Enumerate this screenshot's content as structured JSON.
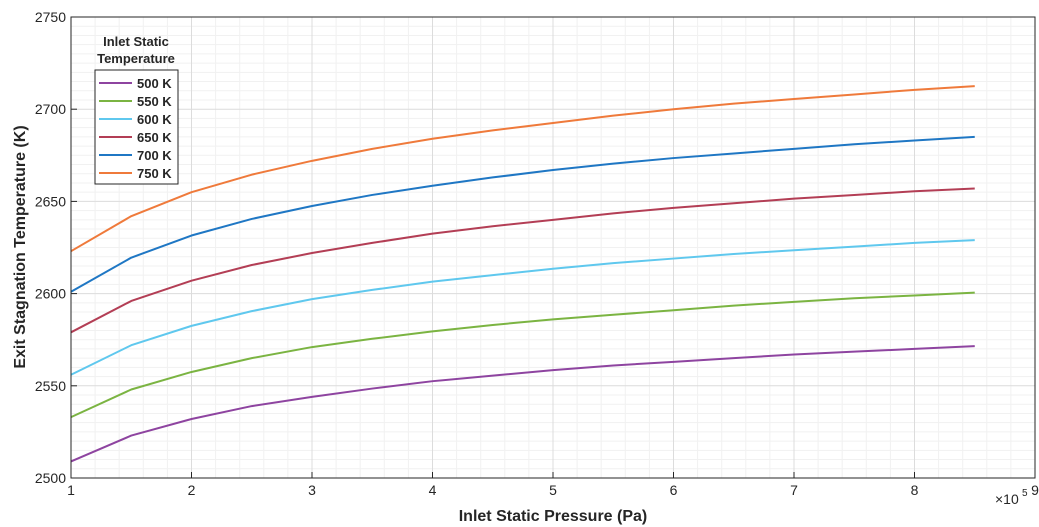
{
  "chart_data": {
    "type": "line",
    "xlabel": "Inlet Static Pressure (Pa)",
    "ylabel": "Exit Stagnation Temperature (K)",
    "x_exponent_label": "×10",
    "x_exponent_power": "5",
    "xlim": [
      1,
      9
    ],
    "ylim": [
      2500,
      2750
    ],
    "x_ticks": [
      "1",
      "2",
      "3",
      "4",
      "5",
      "6",
      "7",
      "8",
      "9"
    ],
    "y_ticks": [
      "2500",
      "2550",
      "2600",
      "2650",
      "2700",
      "2750"
    ],
    "grid": "on (major and minor)",
    "legend_title_line1": "Inlet Static",
    "legend_title_line2": "Temperature",
    "legend_position": "top-left",
    "x": [
      1,
      1.5,
      2,
      2.5,
      3,
      3.5,
      4,
      4.5,
      5,
      5.5,
      6,
      6.5,
      7,
      7.5,
      8,
      8.5
    ],
    "series": [
      {
        "name": "500 K",
        "color": "#8e44a0",
        "values": [
          2509,
          2523,
          2532,
          2539,
          2544,
          2548.5,
          2552.5,
          2555.5,
          2558.5,
          2561,
          2563,
          2565,
          2567,
          2568.5,
          2570,
          2571.5
        ]
      },
      {
        "name": "550 K",
        "color": "#7bb442",
        "values": [
          2533,
          2548,
          2557.5,
          2565,
          2571,
          2575.5,
          2579.5,
          2583,
          2586,
          2588.5,
          2591,
          2593.5,
          2595.5,
          2597.5,
          2599,
          2600.5
        ]
      },
      {
        "name": "600 K",
        "color": "#5fc8ee",
        "values": [
          2556,
          2572,
          2582.5,
          2590.5,
          2597,
          2602,
          2606.5,
          2610,
          2613.5,
          2616.5,
          2619,
          2621.5,
          2623.5,
          2625.5,
          2627.5,
          2629
        ]
      },
      {
        "name": "650 K",
        "color": "#b33e55",
        "values": [
          2579,
          2596,
          2607,
          2615.5,
          2622,
          2627.5,
          2632.5,
          2636.5,
          2640,
          2643.5,
          2646.5,
          2649,
          2651.5,
          2653.5,
          2655.5,
          2657
        ]
      },
      {
        "name": "700 K",
        "color": "#1f77c4",
        "values": [
          2601,
          2619.5,
          2631.5,
          2640.5,
          2647.5,
          2653.5,
          2658.5,
          2663,
          2667,
          2670.5,
          2673.5,
          2676,
          2678.5,
          2681,
          2683,
          2685
        ]
      },
      {
        "name": "750 K",
        "color": "#ef7a3b",
        "values": [
          2623,
          2642,
          2655,
          2664.5,
          2672,
          2678.5,
          2684,
          2688.5,
          2692.5,
          2696.5,
          2700,
          2703,
          2705.5,
          2708,
          2710.5,
          2712.5
        ]
      }
    ]
  }
}
